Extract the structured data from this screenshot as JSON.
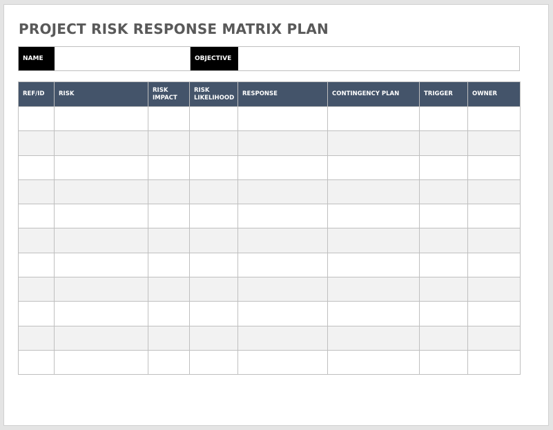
{
  "title": "PROJECT RISK RESPONSE MATRIX PLAN",
  "info": {
    "name_label": "NAME",
    "name_value": "",
    "objective_label": "OBJECTIVE",
    "objective_value": ""
  },
  "table": {
    "headers": [
      "REF/ID",
      "RISK",
      "RISK IMPACT",
      "RISK LIKELIHOOD",
      "RESPONSE",
      "CONTINGENCY PLAN",
      "TRIGGER",
      "OWNER"
    ],
    "row_count": 11,
    "colors": {
      "header_bg": "#44546a",
      "alt_row_bg": "#f2f2f2"
    }
  }
}
